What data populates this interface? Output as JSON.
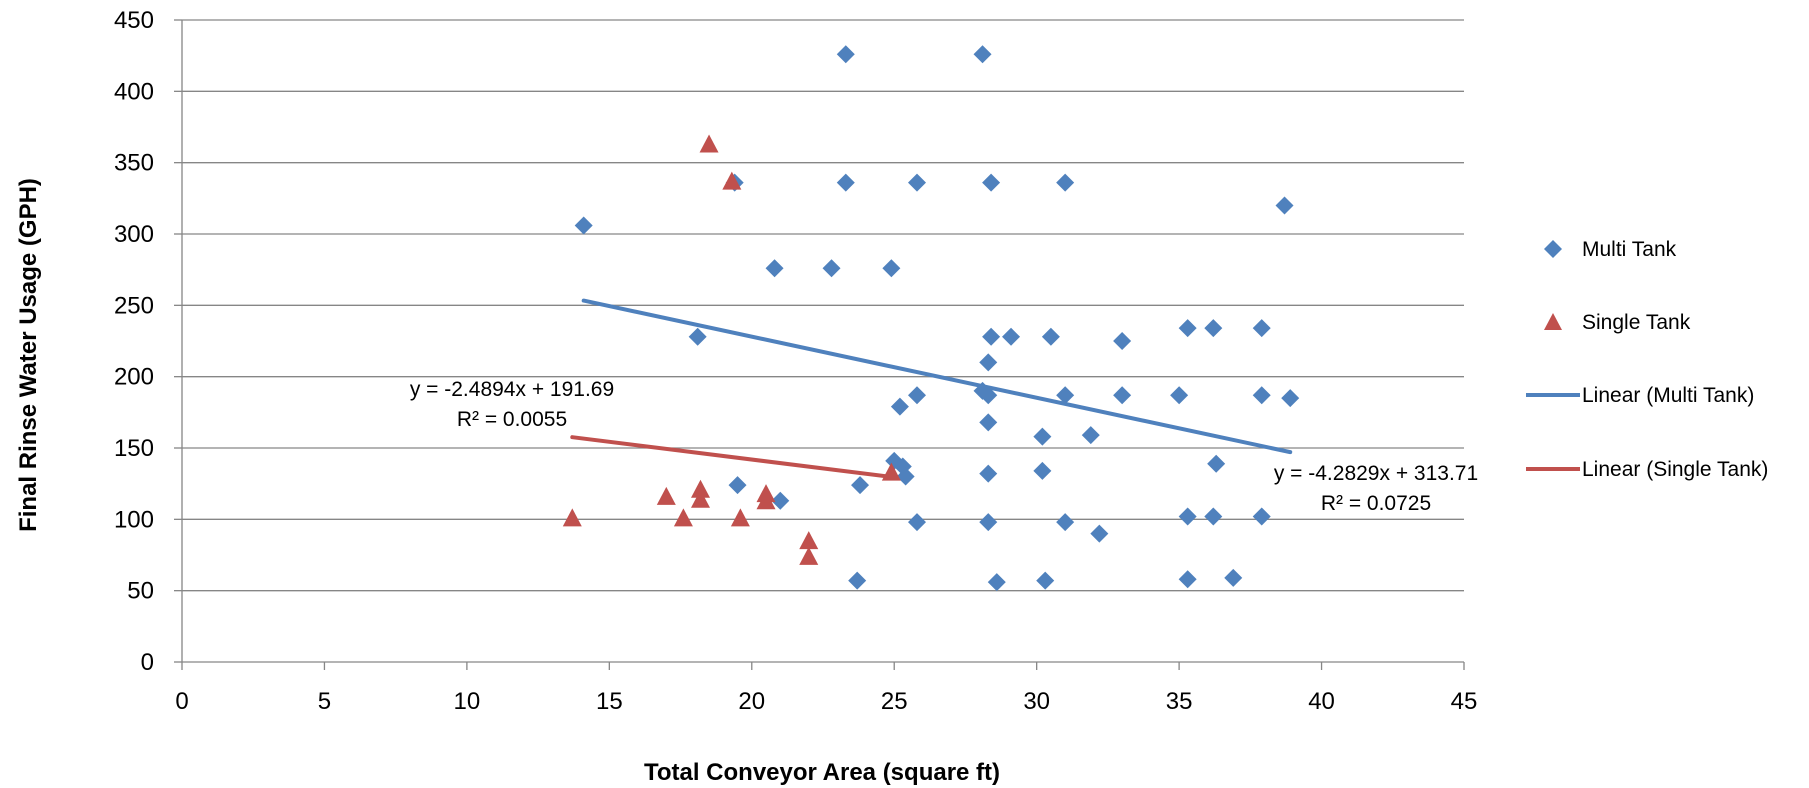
{
  "chart_data": {
    "type": "scatter",
    "title": "",
    "xlabel": "Total Conveyor Area (square ft)",
    "ylabel": "Final Rinse Water Usage (GPH)",
    "xlim": [
      0,
      45
    ],
    "ylim": [
      0,
      450
    ],
    "x_ticks": [
      "0",
      "5",
      "10",
      "15",
      "20",
      "25",
      "30",
      "35",
      "40",
      "45"
    ],
    "y_ticks": [
      "0",
      "50",
      "100",
      "150",
      "200",
      "250",
      "300",
      "350",
      "400",
      "450"
    ],
    "grid": "horizontal major gridlines",
    "legend_position": "right",
    "series": [
      {
        "name": "Multi Tank",
        "marker": "diamond",
        "color": "#4F81BD",
        "points": [
          [
            14.1,
            306
          ],
          [
            18.1,
            228
          ],
          [
            19.4,
            336
          ],
          [
            19.5,
            124
          ],
          [
            20.8,
            276
          ],
          [
            21.0,
            113
          ],
          [
            22.8,
            276
          ],
          [
            23.3,
            426
          ],
          [
            23.3,
            336
          ],
          [
            23.7,
            57
          ],
          [
            23.8,
            124
          ],
          [
            24.9,
            276
          ],
          [
            25.0,
            141
          ],
          [
            25.2,
            179
          ],
          [
            25.3,
            137
          ],
          [
            25.4,
            130
          ],
          [
            25.8,
            336
          ],
          [
            25.8,
            187
          ],
          [
            25.8,
            98
          ],
          [
            28.1,
            426
          ],
          [
            28.1,
            190
          ],
          [
            28.3,
            187
          ],
          [
            28.3,
            210
          ],
          [
            28.3,
            168
          ],
          [
            28.3,
            132
          ],
          [
            28.3,
            98
          ],
          [
            28.4,
            336
          ],
          [
            28.4,
            228
          ],
          [
            28.6,
            56
          ],
          [
            29.1,
            228
          ],
          [
            30.2,
            158
          ],
          [
            30.2,
            134
          ],
          [
            30.3,
            57
          ],
          [
            30.5,
            228
          ],
          [
            31.0,
            336
          ],
          [
            31.0,
            187
          ],
          [
            31.0,
            98
          ],
          [
            31.9,
            159
          ],
          [
            32.2,
            90
          ],
          [
            33.0,
            225
          ],
          [
            33.0,
            187
          ],
          [
            35.0,
            187
          ],
          [
            35.3,
            234
          ],
          [
            35.3,
            102
          ],
          [
            35.3,
            58
          ],
          [
            36.2,
            234
          ],
          [
            36.2,
            102
          ],
          [
            36.3,
            139
          ],
          [
            36.9,
            59
          ],
          [
            37.9,
            234
          ],
          [
            37.9,
            187
          ],
          [
            37.9,
            102
          ],
          [
            38.7,
            320
          ],
          [
            38.9,
            185
          ]
        ]
      },
      {
        "name": "Single Tank",
        "marker": "triangle",
        "color": "#C0504D",
        "points": [
          [
            13.7,
            100
          ],
          [
            17.0,
            115
          ],
          [
            17.6,
            100
          ],
          [
            18.2,
            113
          ],
          [
            18.2,
            120
          ],
          [
            18.5,
            362
          ],
          [
            19.3,
            336
          ],
          [
            19.6,
            100
          ],
          [
            20.5,
            112
          ],
          [
            20.5,
            117
          ],
          [
            22.0,
            84
          ],
          [
            22.0,
            73
          ],
          [
            24.9,
            132
          ]
        ]
      }
    ],
    "trendlines": [
      {
        "name": "Linear (Multi Tank)",
        "color": "#4F81BD",
        "slope": -4.2829,
        "intercept": 313.71,
        "x_range": [
          14.1,
          38.9
        ],
        "equation": "y = -4.2829x + 313.71",
        "r_squared": "R² = 0.0725"
      },
      {
        "name": "Linear (Single Tank)",
        "color": "#C0504D",
        "slope": -2.4894,
        "intercept": 191.69,
        "x_range": [
          13.7,
          24.9
        ],
        "equation": "y = -2.4894x + 191.69",
        "r_squared": "R² = 0.0055"
      }
    ],
    "legend": [
      "Multi Tank",
      "Single Tank",
      "Linear (Multi Tank)",
      "Linear (Single Tank)"
    ]
  }
}
